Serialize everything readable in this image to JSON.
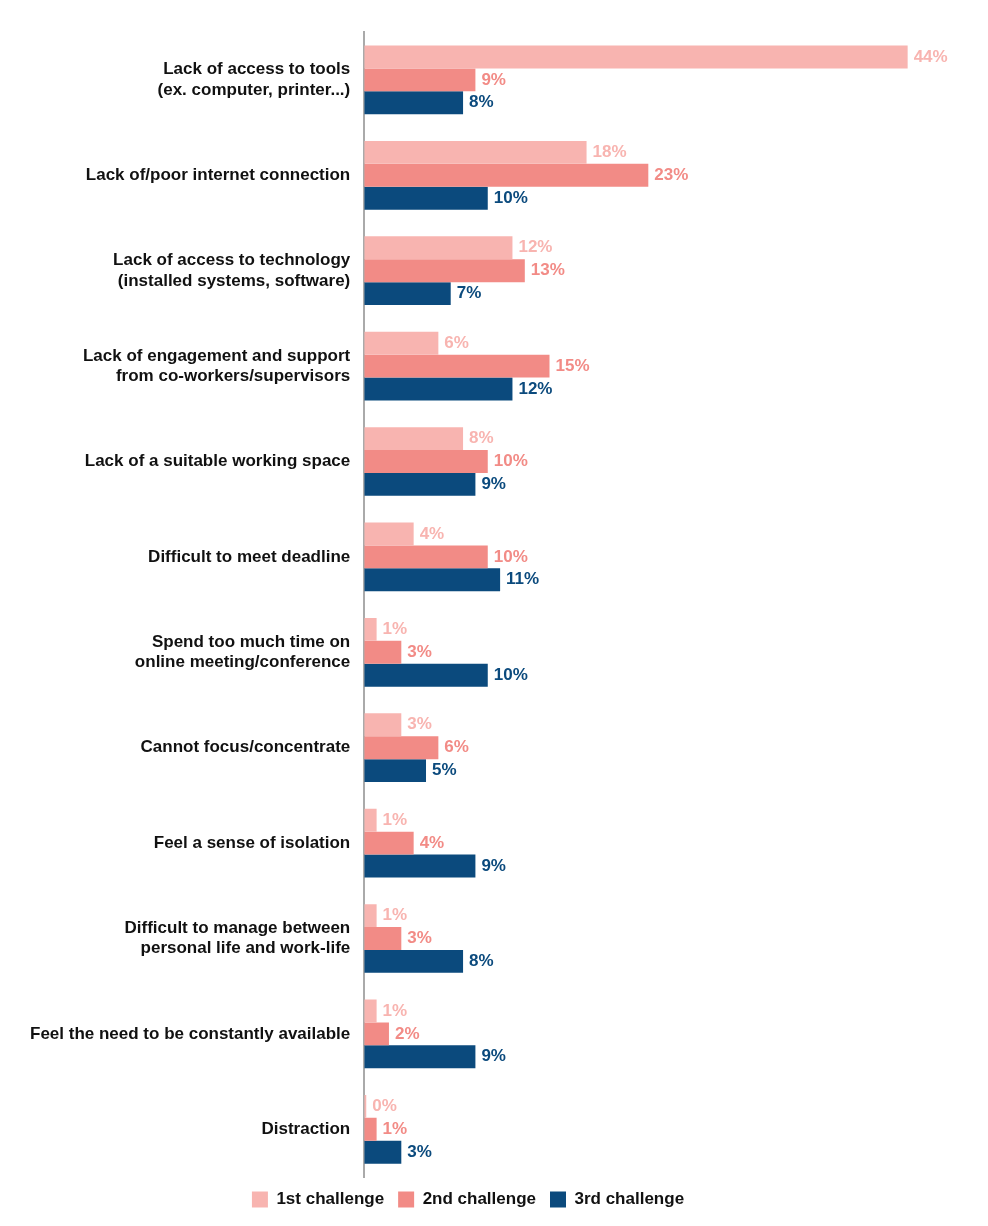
{
  "chart_data": {
    "type": "bar",
    "orientation": "horizontal",
    "categories": [
      "Lack of access to tools\n(ex. computer, printer...)",
      "Lack of/poor internet connection",
      "Lack of access to technology\n(installed systems, software)",
      "Lack of engagement and support\nfrom co-workers/supervisors",
      "Lack of a suitable working space",
      "Difficult to meet deadline",
      "Spend too much time on\nonline meeting/conference",
      "Cannot focus/concentrate",
      "Feel a sense of isolation",
      "Difficult to manage between\npersonal life and work-life",
      "Feel the need to be constantly available",
      "Distraction"
    ],
    "series": [
      {
        "name": "1st challenge",
        "color": "#f8b4b0",
        "values": [
          44,
          18,
          12,
          6,
          8,
          4,
          1,
          3,
          1,
          1,
          1,
          0
        ],
        "value_labels": [
          "44%",
          "18%",
          "12%",
          "6%",
          "8%",
          "4%",
          "1%",
          "3%",
          "1%",
          "1%",
          "1%",
          "0%"
        ]
      },
      {
        "name": "2nd challenge",
        "color": "#f28b86",
        "values": [
          9,
          23,
          13,
          15,
          10,
          10,
          3,
          6,
          4,
          3,
          2,
          1
        ],
        "value_labels": [
          "9%",
          "23%",
          "13%",
          "15%",
          "10%",
          "10%",
          "3%",
          "6%",
          "4%",
          "3%",
          "2%",
          "1%"
        ]
      },
      {
        "name": "3rd challenge",
        "color": "#0b4a7d",
        "values": [
          8,
          10,
          7,
          12,
          9,
          11,
          10,
          5,
          9,
          8,
          9,
          3
        ],
        "value_labels": [
          "8%",
          "10%",
          "7%",
          "12%",
          "9%",
          "11%",
          "10%",
          "5%",
          "9%",
          "8%",
          "9%",
          "3%"
        ]
      }
    ],
    "tick_labels": "y",
    "grid": false,
    "legend": "bottom"
  }
}
